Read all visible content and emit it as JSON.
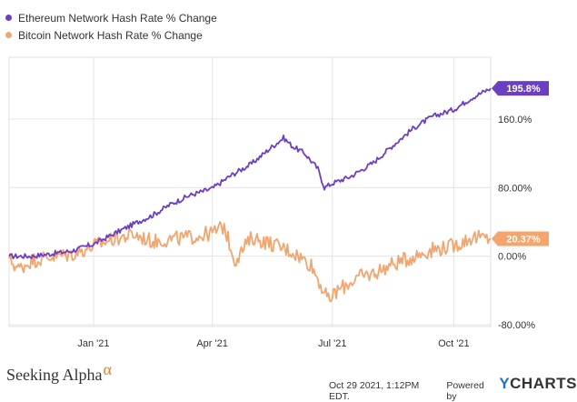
{
  "chart_data": {
    "type": "line",
    "title": "",
    "xlabel": "",
    "ylabel": "",
    "x_tick_labels": [
      "Jan '21",
      "Apr '21",
      "Jul '21",
      "Oct '21"
    ],
    "y_tick_labels": [
      "160.0%",
      "80.00%",
      "0.00%",
      "-80.00%"
    ],
    "y_ticks": [
      160,
      80,
      0,
      -80
    ],
    "ylim": [
      -82,
      232
    ],
    "xlim": [
      "2020-10-29",
      "2021-10-29"
    ],
    "grid": true,
    "legend_position": "top-left",
    "series": [
      {
        "name": "Ethereum Network Hash Rate % Change",
        "color": "#6b3fc4",
        "end_label": "195.8%",
        "points": [
          [
            "2020-10-29",
            0
          ],
          [
            "2020-11-15",
            0
          ],
          [
            "2020-12-01",
            3
          ],
          [
            "2020-12-15",
            6
          ],
          [
            "2021-01-01",
            14
          ],
          [
            "2021-01-15",
            25
          ],
          [
            "2021-02-01",
            38
          ],
          [
            "2021-02-15",
            48
          ],
          [
            "2021-03-01",
            61
          ],
          [
            "2021-03-15",
            71
          ],
          [
            "2021-04-01",
            79
          ],
          [
            "2021-04-15",
            94
          ],
          [
            "2021-05-01",
            108
          ],
          [
            "2021-05-15",
            126
          ],
          [
            "2021-05-25",
            138
          ],
          [
            "2021-06-01",
            128
          ],
          [
            "2021-06-10",
            120
          ],
          [
            "2021-06-20",
            102
          ],
          [
            "2021-06-25",
            80
          ],
          [
            "2021-07-01",
            85
          ],
          [
            "2021-07-15",
            93
          ],
          [
            "2021-08-01",
            109
          ],
          [
            "2021-08-15",
            128
          ],
          [
            "2021-09-01",
            150
          ],
          [
            "2021-09-15",
            163
          ],
          [
            "2021-10-01",
            171
          ],
          [
            "2021-10-15",
            185
          ],
          [
            "2021-10-29",
            195.8
          ]
        ]
      },
      {
        "name": "Bitcoin Network Hash Rate % Change",
        "color": "#f5a46c",
        "end_label": "20.37%",
        "points": [
          [
            "2020-10-29",
            -3
          ],
          [
            "2020-11-05",
            -15
          ],
          [
            "2020-11-15",
            -5
          ],
          [
            "2020-12-01",
            0
          ],
          [
            "2020-12-15",
            2
          ],
          [
            "2021-01-01",
            12
          ],
          [
            "2021-01-15",
            20
          ],
          [
            "2021-02-01",
            25
          ],
          [
            "2021-02-15",
            17
          ],
          [
            "2021-03-01",
            20
          ],
          [
            "2021-03-15",
            22
          ],
          [
            "2021-04-01",
            27
          ],
          [
            "2021-04-10",
            35
          ],
          [
            "2021-04-18",
            -5
          ],
          [
            "2021-05-01",
            22
          ],
          [
            "2021-05-15",
            15
          ],
          [
            "2021-06-01",
            5
          ],
          [
            "2021-06-15",
            -10
          ],
          [
            "2021-06-28",
            -52
          ],
          [
            "2021-07-05",
            -40
          ],
          [
            "2021-07-20",
            -25
          ],
          [
            "2021-08-01",
            -20
          ],
          [
            "2021-08-15",
            -10
          ],
          [
            "2021-09-01",
            0
          ],
          [
            "2021-09-15",
            8
          ],
          [
            "2021-10-01",
            12
          ],
          [
            "2021-10-15",
            22
          ],
          [
            "2021-10-29",
            20.37
          ]
        ]
      }
    ]
  },
  "footer": {
    "brand": "Seeking Alpha",
    "brand_symbol": "α",
    "timestamp": "Oct 29 2021, 1:12PM EDT.",
    "powered_by": "Powered by",
    "ycharts_y": "Y",
    "ycharts_rest": "CHARTS"
  }
}
